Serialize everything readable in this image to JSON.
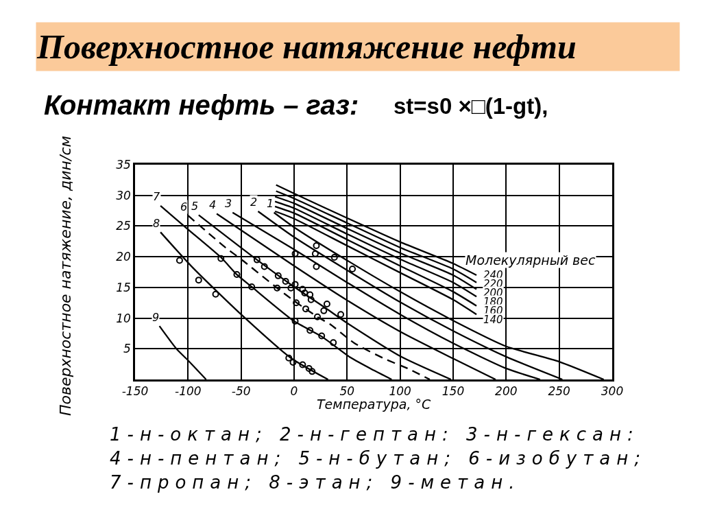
{
  "chart_data": {
    "type": "line",
    "title": "Поверхностное натяжение нефти",
    "subtitle": "Контакт нефть – газ:",
    "xlabel": "Температура, °С",
    "ylabel": "Поверхностное натяжение, дин/см",
    "annotations": [
      "st=s0 ×□(1-gt),",
      "Молекулярный вес",
      "1-н-октан; 2-н-гептан: 3-н-гексан:",
      "4-н-пентан; 5-н-бутан; 6-изобутан;",
      "7-пропан; 8-этан; 9-метан."
    ],
    "xlim": [
      -150,
      300
    ],
    "xticks": [
      -150,
      -100,
      -50,
      0,
      50,
      100,
      150,
      200,
      250,
      300
    ],
    "ylim": [
      0,
      35
    ],
    "yticks": [
      5,
      10,
      15,
      20,
      25,
      30,
      35
    ],
    "grid": true,
    "legend": false,
    "series": [
      {
        "name": "240",
        "color": "#000000",
        "x": [
          -17,
          0,
          50,
          100,
          150,
          172
        ],
        "values": [
          31.7,
          30.3,
          26.3,
          22.4,
          18.9,
          17.0
        ]
      },
      {
        "name": "220",
        "color": "#000000",
        "x": [
          -17,
          0,
          50,
          100,
          150,
          172
        ],
        "values": [
          30.7,
          29.5,
          25.5,
          21.5,
          18.0,
          15.8
        ]
      },
      {
        "name": "200",
        "color": "#000000",
        "x": [
          -18,
          0,
          50,
          100,
          150,
          172
        ],
        "values": [
          29.8,
          28.7,
          24.6,
          20.6,
          17.0,
          14.7
        ]
      },
      {
        "name": "180",
        "color": "#000000",
        "x": [
          -18,
          0,
          50,
          100,
          150,
          172
        ],
        "values": [
          29.0,
          27.9,
          23.7,
          19.6,
          15.8,
          13.5
        ]
      },
      {
        "name": "160",
        "color": "#000000",
        "x": [
          -18,
          0,
          50,
          100,
          150,
          172
        ],
        "values": [
          28.2,
          27.1,
          22.8,
          18.5,
          14.3,
          12.0
        ]
      },
      {
        "name": "140",
        "color": "#000000",
        "x": [
          -18,
          0,
          50,
          100,
          150,
          172
        ],
        "values": [
          27.4,
          26.2,
          21.8,
          17.4,
          13.0,
          10.6
        ]
      },
      {
        "name": "1",
        "color": "#000000",
        "x": [
          -19,
          0,
          50,
          100,
          150,
          200,
          250,
          292
        ],
        "values": [
          27.2,
          24.8,
          19.4,
          14.3,
          9.6,
          5.4,
          2.9,
          0
        ]
      },
      {
        "name": "2",
        "color": "#000000",
        "x": [
          -34,
          0,
          50,
          100,
          150,
          200,
          253
        ],
        "values": [
          27.4,
          23.2,
          17.8,
          12.6,
          7.9,
          3.7,
          0
        ]
      },
      {
        "name": "3",
        "color": "#000000",
        "x": [
          -58,
          0,
          50,
          100,
          150,
          200,
          232
        ],
        "values": [
          27.2,
          21.2,
          15.8,
          10.6,
          5.9,
          1.8,
          0
        ]
      },
      {
        "name": "4",
        "color": "#000000",
        "x": [
          -73,
          0,
          50,
          100,
          150,
          190
        ],
        "values": [
          27.0,
          18.5,
          12.9,
          7.8,
          3.4,
          0
        ]
      },
      {
        "name": "5",
        "color": "#000000",
        "x": [
          -90,
          -35,
          0,
          30,
          50,
          100,
          148
        ],
        "values": [
          26.8,
          19.5,
          15.1,
          11.6,
          9.2,
          3.8,
          0
        ]
      },
      {
        "name": "6",
        "color": "#000000",
        "line_style": "dashed",
        "x": [
          -100,
          -64,
          -50,
          -16,
          0,
          22,
          34,
          57,
          85,
          107,
          128
        ],
        "values": [
          26.7,
          21.4,
          19.6,
          14.9,
          12.8,
          10.2,
          9.0,
          5.9,
          3.4,
          1.8,
          0
        ]
      },
      {
        "name": "7",
        "color": "#000000",
        "x": [
          -126,
          -101,
          -69,
          -54,
          -40,
          0,
          26,
          53,
          75,
          92
        ],
        "values": [
          28.3,
          24.6,
          19.9,
          17.1,
          15.1,
          9.5,
          7.0,
          3.6,
          1.5,
          0
        ]
      },
      {
        "name": "8",
        "color": "#000000",
        "x": [
          -126,
          -96,
          -50,
          -3,
          32
        ],
        "values": [
          24.0,
          18.3,
          10.6,
          3.5,
          0
        ]
      },
      {
        "name": "9",
        "color": "#000000",
        "x": [
          -127,
          -111,
          -100,
          -83
        ],
        "values": [
          8.7,
          5.0,
          3.1,
          0
        ]
      },
      {
        "type": "scatter",
        "marker": "circle",
        "color": "#000000",
        "x": [
          -108,
          -90,
          -74,
          -69,
          -54,
          -40,
          -35,
          -28,
          -15,
          -16,
          -8,
          -3,
          1,
          8,
          10,
          15,
          16,
          31,
          28,
          44,
          2,
          11,
          22,
          1,
          15,
          26,
          37,
          -5,
          -1,
          8,
          14,
          17,
          1,
          20,
          21,
          38,
          21,
          55
        ],
        "values": [
          19.4,
          16.2,
          13.9,
          19.7,
          17.1,
          15.1,
          19.5,
          18.4,
          16.9,
          14.9,
          16.0,
          14.9,
          15.5,
          14.7,
          14.1,
          13.8,
          13.0,
          12.3,
          11.2,
          10.6,
          12.5,
          11.5,
          10.2,
          9.5,
          8.0,
          7.1,
          6.0,
          3.5,
          2.8,
          2.4,
          1.8,
          1.3,
          20.5,
          20.5,
          21.8,
          19.9,
          18.4,
          18.0
        ]
      }
    ]
  }
}
